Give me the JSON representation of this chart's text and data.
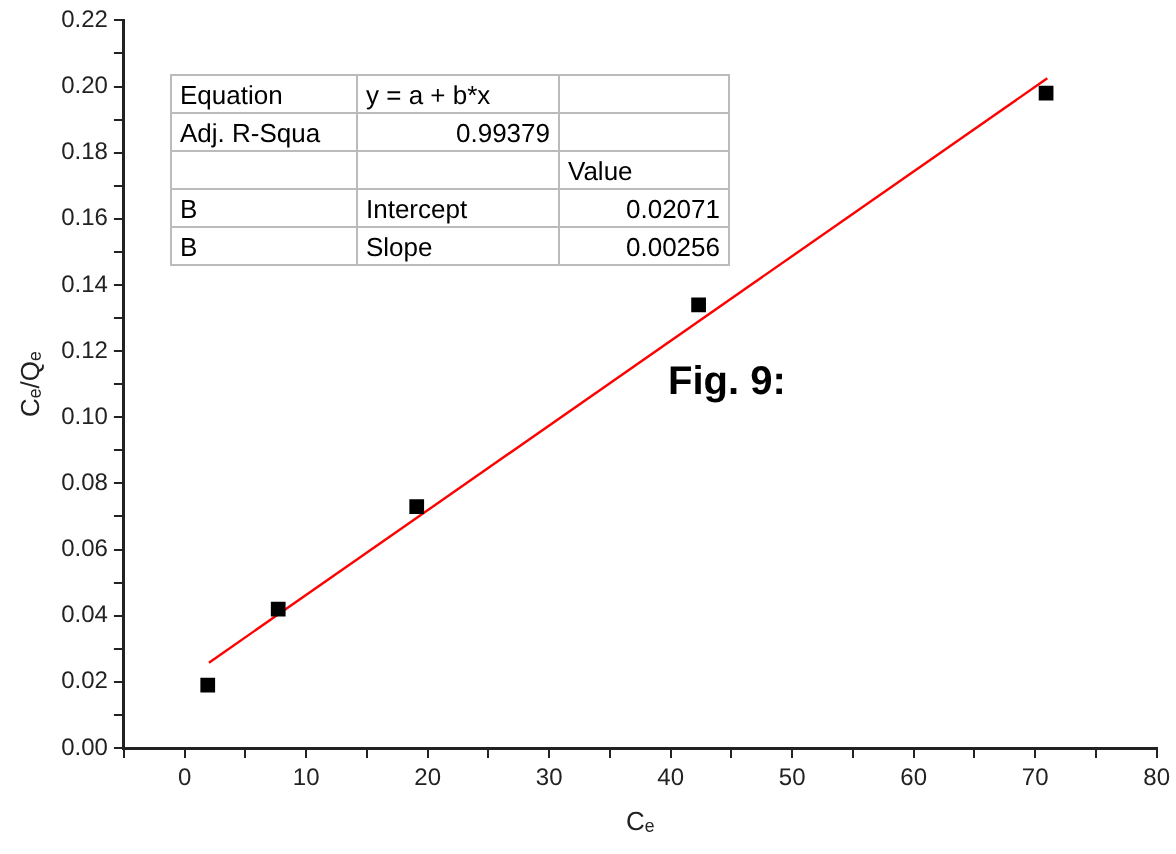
{
  "chart_data": {
    "type": "scatter",
    "xlabel": "Cₑ",
    "ylabel": "Cₑ/Qₑ",
    "series": [
      {
        "color": "#000000",
        "marker": "square",
        "x": [
          1.9,
          7.7,
          19.1,
          42.3,
          70.9
        ],
        "values": [
          0.019,
          0.042,
          0.073,
          0.134,
          0.198
        ]
      },
      {
        "type": "line",
        "color": "#ff0000",
        "marker": "none",
        "line_style": "solid",
        "x": [
          2,
          71
        ],
        "values": [
          0.0258,
          0.2025
        ]
      }
    ],
    "xlim": [
      -5,
      80
    ],
    "xticks": [
      {
        "value": -5,
        "label": null
      },
      0,
      {
        "value": 5,
        "label": null
      },
      10,
      {
        "value": 15,
        "label": null
      },
      20,
      {
        "value": 25,
        "label": null
      },
      30,
      {
        "value": 35,
        "label": null
      },
      40,
      {
        "value": 45,
        "label": null
      },
      50,
      {
        "value": 55,
        "label": null
      },
      60,
      {
        "value": 65,
        "label": null
      },
      70,
      {
        "value": 75,
        "label": null
      },
      80
    ],
    "ylim": [
      0,
      0.22
    ],
    "yticks": [
      {
        "value": 0,
        "label": "0.00"
      },
      {
        "value": 0.01,
        "label": null
      },
      {
        "value": 0.02,
        "label": "0.02"
      },
      {
        "value": 0.03,
        "label": null
      },
      {
        "value": 0.04,
        "label": "0.04"
      },
      {
        "value": 0.05,
        "label": null
      },
      {
        "value": 0.06,
        "label": "0.06"
      },
      {
        "value": 0.07,
        "label": null
      },
      {
        "value": 0.08,
        "label": "0.08"
      },
      {
        "value": 0.09,
        "label": null
      },
      {
        "value": 0.1,
        "label": "0.10"
      },
      {
        "value": 0.11,
        "label": null
      },
      {
        "value": 0.12,
        "label": "0.12"
      },
      {
        "value": 0.13,
        "label": null
      },
      {
        "value": 0.14,
        "label": "0.14"
      },
      {
        "value": 0.15,
        "label": null
      },
      {
        "value": 0.16,
        "label": "0.16"
      },
      {
        "value": 0.17,
        "label": null
      },
      {
        "value": 0.18,
        "label": "0.18"
      },
      {
        "value": 0.19,
        "label": null
      },
      {
        "value": 0.2,
        "label": "0.20"
      },
      {
        "value": 0.21,
        "label": null
      },
      {
        "value": 0.22,
        "label": "0.22"
      }
    ],
    "grid": false,
    "legend": false,
    "annotations": [
      "Equation",
      "y = a + b*x",
      "Adj. R-Squa",
      "0.99379",
      "Value",
      "B",
      "Intercept",
      "0.02071",
      "B",
      "Slope",
      "0.00256",
      "Fig. 9:"
    ]
  }
}
